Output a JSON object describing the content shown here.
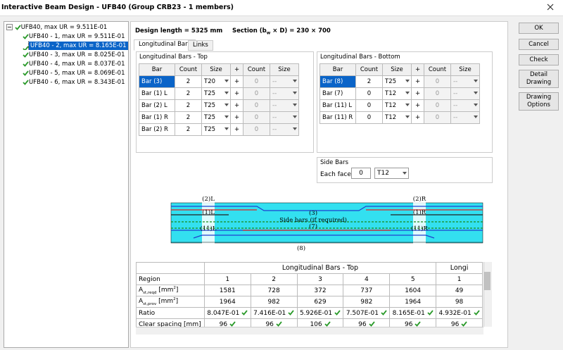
{
  "window": {
    "title": "Interactive Beam Design - UFB40 (Group CRB23 - 1 members)"
  },
  "tree": {
    "root": "UFB40, max UR = 9.511E-01",
    "children": [
      "UFB40 - 1, max UR = 9.511E-01",
      "UFB40 - 2, max UR = 8.165E-01",
      "UFB40 - 3, max UR = 8.025E-01",
      "UFB40 - 4, max UR = 8.037E-01",
      "UFB40 - 5, max UR = 8.069E-01",
      "UFB40 - 6, max UR = 8.343E-01"
    ]
  },
  "buttons": [
    "OK",
    "Cancel",
    "Check",
    "Detail Drawing",
    "Drawing Options"
  ],
  "header": {
    "design_length": "Design length = 5325 mm",
    "section_prefix": "Section (b",
    "section_sub": "w",
    "section_rest": " × D) = 230 × 700"
  },
  "tabs": [
    "Longitudinal Bars",
    "Links"
  ],
  "top_bars": {
    "title": "Longitudinal Bars - Top",
    "columns": [
      "Bar",
      "Count",
      "Size",
      "+",
      "Count",
      "Size"
    ],
    "rows": [
      [
        "Bar (3)",
        "2",
        "T20",
        "+",
        "0",
        "--"
      ],
      [
        "Bar (1) L",
        "2",
        "T25",
        "+",
        "0",
        "--"
      ],
      [
        "Bar (2) L",
        "2",
        "T25",
        "+",
        "0",
        "--"
      ],
      [
        "Bar (1) R",
        "2",
        "T25",
        "+",
        "0",
        "--"
      ],
      [
        "Bar (2) R",
        "2",
        "T25",
        "+",
        "0",
        "--"
      ]
    ]
  },
  "bottom_bars": {
    "title": "Longitudinal Bars - Bottom",
    "columns": [
      "Bar",
      "Count",
      "Size",
      "+",
      "Count",
      "Size"
    ],
    "rows": [
      [
        "Bar (8)",
        "2",
        "T25",
        "+",
        "0",
        "--"
      ],
      [
        "Bar (7)",
        "0",
        "T12",
        "+",
        "0",
        "--"
      ],
      [
        "Bar (11) L",
        "0",
        "T12",
        "+",
        "0",
        "--"
      ],
      [
        "Bar (11) R",
        "0",
        "T12",
        "+",
        "0",
        "--"
      ]
    ]
  },
  "side_bars": {
    "title": "Side Bars",
    "label": "Each face",
    "count": "0",
    "size": "T12"
  },
  "diagram": {
    "left": [
      "(2)L",
      "(1)L",
      "(11)L"
    ],
    "right": [
      "(2)R",
      "(1)R",
      "(11)R"
    ],
    "top": "(3)",
    "middle": "Side bars (if required)",
    "side": "(7)",
    "bottom": "(8)"
  },
  "results": {
    "group_top": "Longitudinal Bars - Top",
    "group_next": "Longi",
    "regions_label": "Region",
    "regions": [
      "1",
      "2",
      "3",
      "4",
      "5",
      "1"
    ],
    "ast_reqd": {
      "main": "A",
      "sub": "st,reqd",
      "unit": " [mm",
      "sup": "2",
      "end": "]",
      "values": [
        "1581",
        "728",
        "372",
        "737",
        "1604",
        "49"
      ]
    },
    "ast_prov": {
      "main": "A",
      "sub": "st,prov",
      "unit": " [mm",
      "sup": "2",
      "end": "]",
      "values": [
        "1964",
        "982",
        "629",
        "982",
        "1964",
        "98"
      ]
    },
    "ratio": {
      "label": "Ratio",
      "values": [
        "8.047E-01",
        "7.416E-01",
        "5.926E-01",
        "7.507E-01",
        "8.165E-01",
        "4.932E-01"
      ]
    },
    "spacing": {
      "label": "Clear spacing [mm]",
      "values": [
        "96",
        "96",
        "106",
        "96",
        "96",
        "96"
      ]
    }
  }
}
